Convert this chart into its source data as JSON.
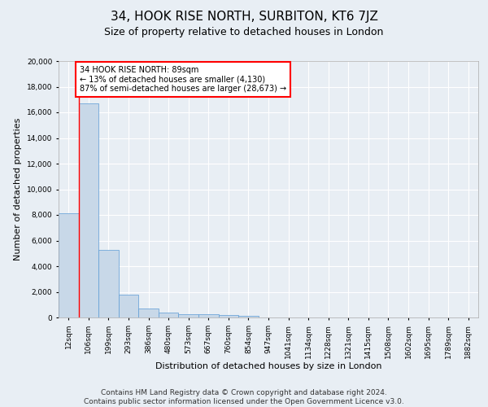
{
  "title": "34, HOOK RISE NORTH, SURBITON, KT6 7JZ",
  "subtitle": "Size of property relative to detached houses in London",
  "xlabel": "Distribution of detached houses by size in London",
  "ylabel": "Number of detached properties",
  "categories": [
    "12sqm",
    "106sqm",
    "199sqm",
    "293sqm",
    "386sqm",
    "480sqm",
    "573sqm",
    "667sqm",
    "760sqm",
    "854sqm",
    "947sqm",
    "1041sqm",
    "1134sqm",
    "1228sqm",
    "1321sqm",
    "1415sqm",
    "1508sqm",
    "1602sqm",
    "1695sqm",
    "1789sqm",
    "1882sqm"
  ],
  "values": [
    8100,
    16700,
    5300,
    1750,
    700,
    350,
    275,
    225,
    175,
    125,
    0,
    0,
    0,
    0,
    0,
    0,
    0,
    0,
    0,
    0,
    0
  ],
  "bar_color": "#c8d8e8",
  "bar_edge_color": "#5b9bd5",
  "annotation_text": "34 HOOK RISE NORTH: 89sqm\n← 13% of detached houses are smaller (4,130)\n87% of semi-detached houses are larger (28,673) →",
  "annotation_box_color": "white",
  "annotation_box_edge_color": "red",
  "vline_x": 0.5,
  "ylim": [
    0,
    20000
  ],
  "yticks": [
    0,
    2000,
    4000,
    6000,
    8000,
    10000,
    12000,
    14000,
    16000,
    18000,
    20000
  ],
  "footer_line1": "Contains HM Land Registry data © Crown copyright and database right 2024.",
  "footer_line2": "Contains public sector information licensed under the Open Government Licence v3.0.",
  "background_color": "#e8eef4",
  "grid_color": "#ffffff",
  "title_fontsize": 11,
  "subtitle_fontsize": 9,
  "axis_label_fontsize": 8,
  "tick_fontsize": 6.5,
  "footer_fontsize": 6.5
}
